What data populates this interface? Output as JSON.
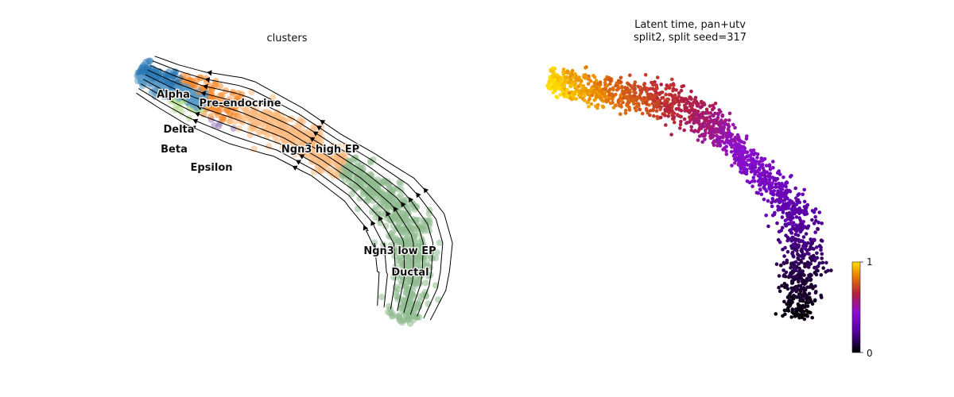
{
  "chart_data": [
    {
      "type": "scatter",
      "title": "clusters",
      "overlay": "streamlines",
      "xlabel": "",
      "ylabel": "",
      "axes_visible": false,
      "legend": "on data",
      "series": [
        {
          "name": "Ductal",
          "color": "#8fbc8f"
        },
        {
          "name": "Ngn3 low EP",
          "color": "#8fbc8f"
        },
        {
          "name": "Ngn3 high EP",
          "color": "#fdb97d"
        },
        {
          "name": "Pre-endocrine",
          "color": "#f8882a"
        },
        {
          "name": "Beta",
          "color": "#b5de8a"
        },
        {
          "name": "Alpha",
          "color": "#2878b5"
        },
        {
          "name": "Delta",
          "color": "#5a9bc8"
        },
        {
          "name": "Epsilon",
          "color": "#9b7bbd"
        }
      ]
    },
    {
      "type": "scatter",
      "title": "Latent time, pan+utv",
      "subtitle": "split2, split seed=317",
      "xlabel": "",
      "ylabel": "",
      "axes_visible": false,
      "colormap": "gnuplot",
      "colorbar": {
        "min": 0,
        "max": 1,
        "ticks": [
          "0",
          "1"
        ],
        "placement": "right"
      }
    }
  ]
}
